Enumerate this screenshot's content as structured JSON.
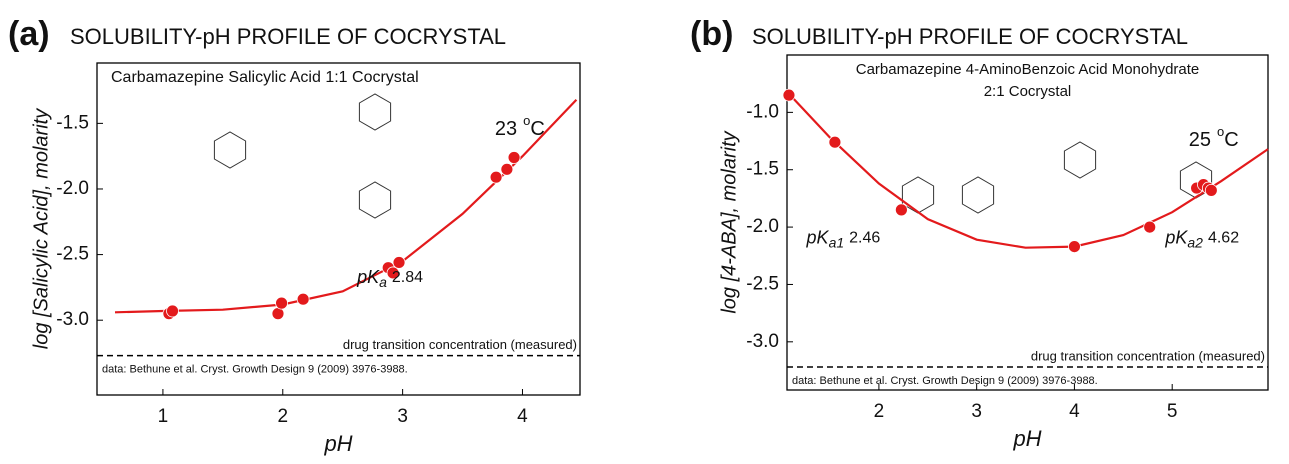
{
  "chart_data": [
    {
      "type": "scatter",
      "panel_label": "(a)",
      "title": "SOLUBILITY-pH PROFILE OF COCRYSTAL",
      "subtitle": [
        "Carbamazepine Salicylic Acid 1:1 Cocrystal"
      ],
      "xlabel": "pH",
      "ylabel": "log [Salicylic Acid], molarity",
      "color": "#e31a1c",
      "xlim": [
        0.45,
        4.48
      ],
      "ylim": [
        -3.57,
        -1.04
      ],
      "xticks": [
        1,
        2,
        3,
        4
      ],
      "yticks": [
        -1.5,
        {
          "value": -2,
          "label": "-2.0"
        },
        -2.5,
        {
          "value": -3,
          "label": "-3.0"
        }
      ],
      "x": [
        1.05,
        1.08,
        1.96,
        1.99,
        2.17,
        2.88,
        2.92,
        2.97,
        3.78,
        3.87,
        3.93
      ],
      "y": [
        -2.95,
        -2.93,
        -2.95,
        -2.87,
        -2.84,
        -2.6,
        -2.64,
        -2.56,
        -1.91,
        -1.85,
        -1.76
      ],
      "fit": {
        "x": [
          0.6,
          1.0,
          1.5,
          2.0,
          2.5,
          3.0,
          3.5,
          4.0,
          4.45
        ],
        "y": [
          -2.94,
          -2.93,
          -2.92,
          -2.88,
          -2.78,
          -2.55,
          -2.19,
          -1.75,
          -1.32
        ]
      },
      "reference_line": {
        "y": -3.27,
        "label": "drug transition concentration (measured)"
      },
      "note": "data: Bethune et al. Cryst. Growth Design 9 (2009) 3976-3988.",
      "temperature": {
        "value": 23,
        "degree": "o",
        "unit": "C",
        "x": 3.77,
        "y": -1.55
      },
      "pka_labels": [
        {
          "symbol": "pK",
          "subscript": "a",
          "value": 2.84,
          "x": 2.62,
          "y": -2.68
        }
      ]
    },
    {
      "type": "scatter",
      "panel_label": "(b)",
      "title": "SOLUBILITY-pH PROFILE OF COCRYSTAL",
      "subtitle": [
        "Carbamazepine 4-AminoBenzoic Acid Monohydrate",
        "2:1 Cocrystal"
      ],
      "xlabel": "pH",
      "ylabel": "log [4-ABA], molarity",
      "color": "#e31a1c",
      "xlim": [
        1.06,
        5.98
      ],
      "ylim": [
        -3.42,
        -0.5
      ],
      "xticks": [
        2,
        3,
        4,
        5
      ],
      "yticks": [
        {
          "value": -1,
          "label": "-1.0"
        },
        -1.5,
        {
          "value": -2,
          "label": "-2.0"
        },
        -2.5,
        {
          "value": -3,
          "label": "-3.0"
        }
      ],
      "x": [
        1.08,
        1.55,
        2.23,
        4.0,
        4.77,
        5.25,
        5.32,
        5.37,
        5.4
      ],
      "y": [
        -0.85,
        -1.26,
        -1.85,
        -2.17,
        -2.0,
        -1.66,
        -1.63,
        -1.66,
        -1.68
      ],
      "fit": {
        "x": [
          1.06,
          1.5,
          2.0,
          2.5,
          3.0,
          3.5,
          4.0,
          4.5,
          5.0,
          5.5,
          5.98
        ],
        "y": [
          -0.82,
          -1.22,
          -1.62,
          -1.93,
          -2.11,
          -2.18,
          -2.17,
          -2.07,
          -1.87,
          -1.6,
          -1.32
        ]
      },
      "reference_line": {
        "y": -3.22,
        "label": "drug transition concentration (measured)"
      },
      "note": "data: Bethune et al. Cryst. Growth Design 9 (2009) 3976-3988.",
      "temperature": {
        "value": 25,
        "degree": "o",
        "unit": "C",
        "x": 5.17,
        "y": -1.25
      },
      "pka_labels": [
        {
          "symbol": "pK",
          "subscript": "a1",
          "value": 2.46,
          "x": 1.26,
          "y": -2.1
        },
        {
          "symbol": "pK",
          "subscript": "a2",
          "value": 4.62,
          "x": 4.93,
          "y": -2.1
        }
      ]
    }
  ]
}
